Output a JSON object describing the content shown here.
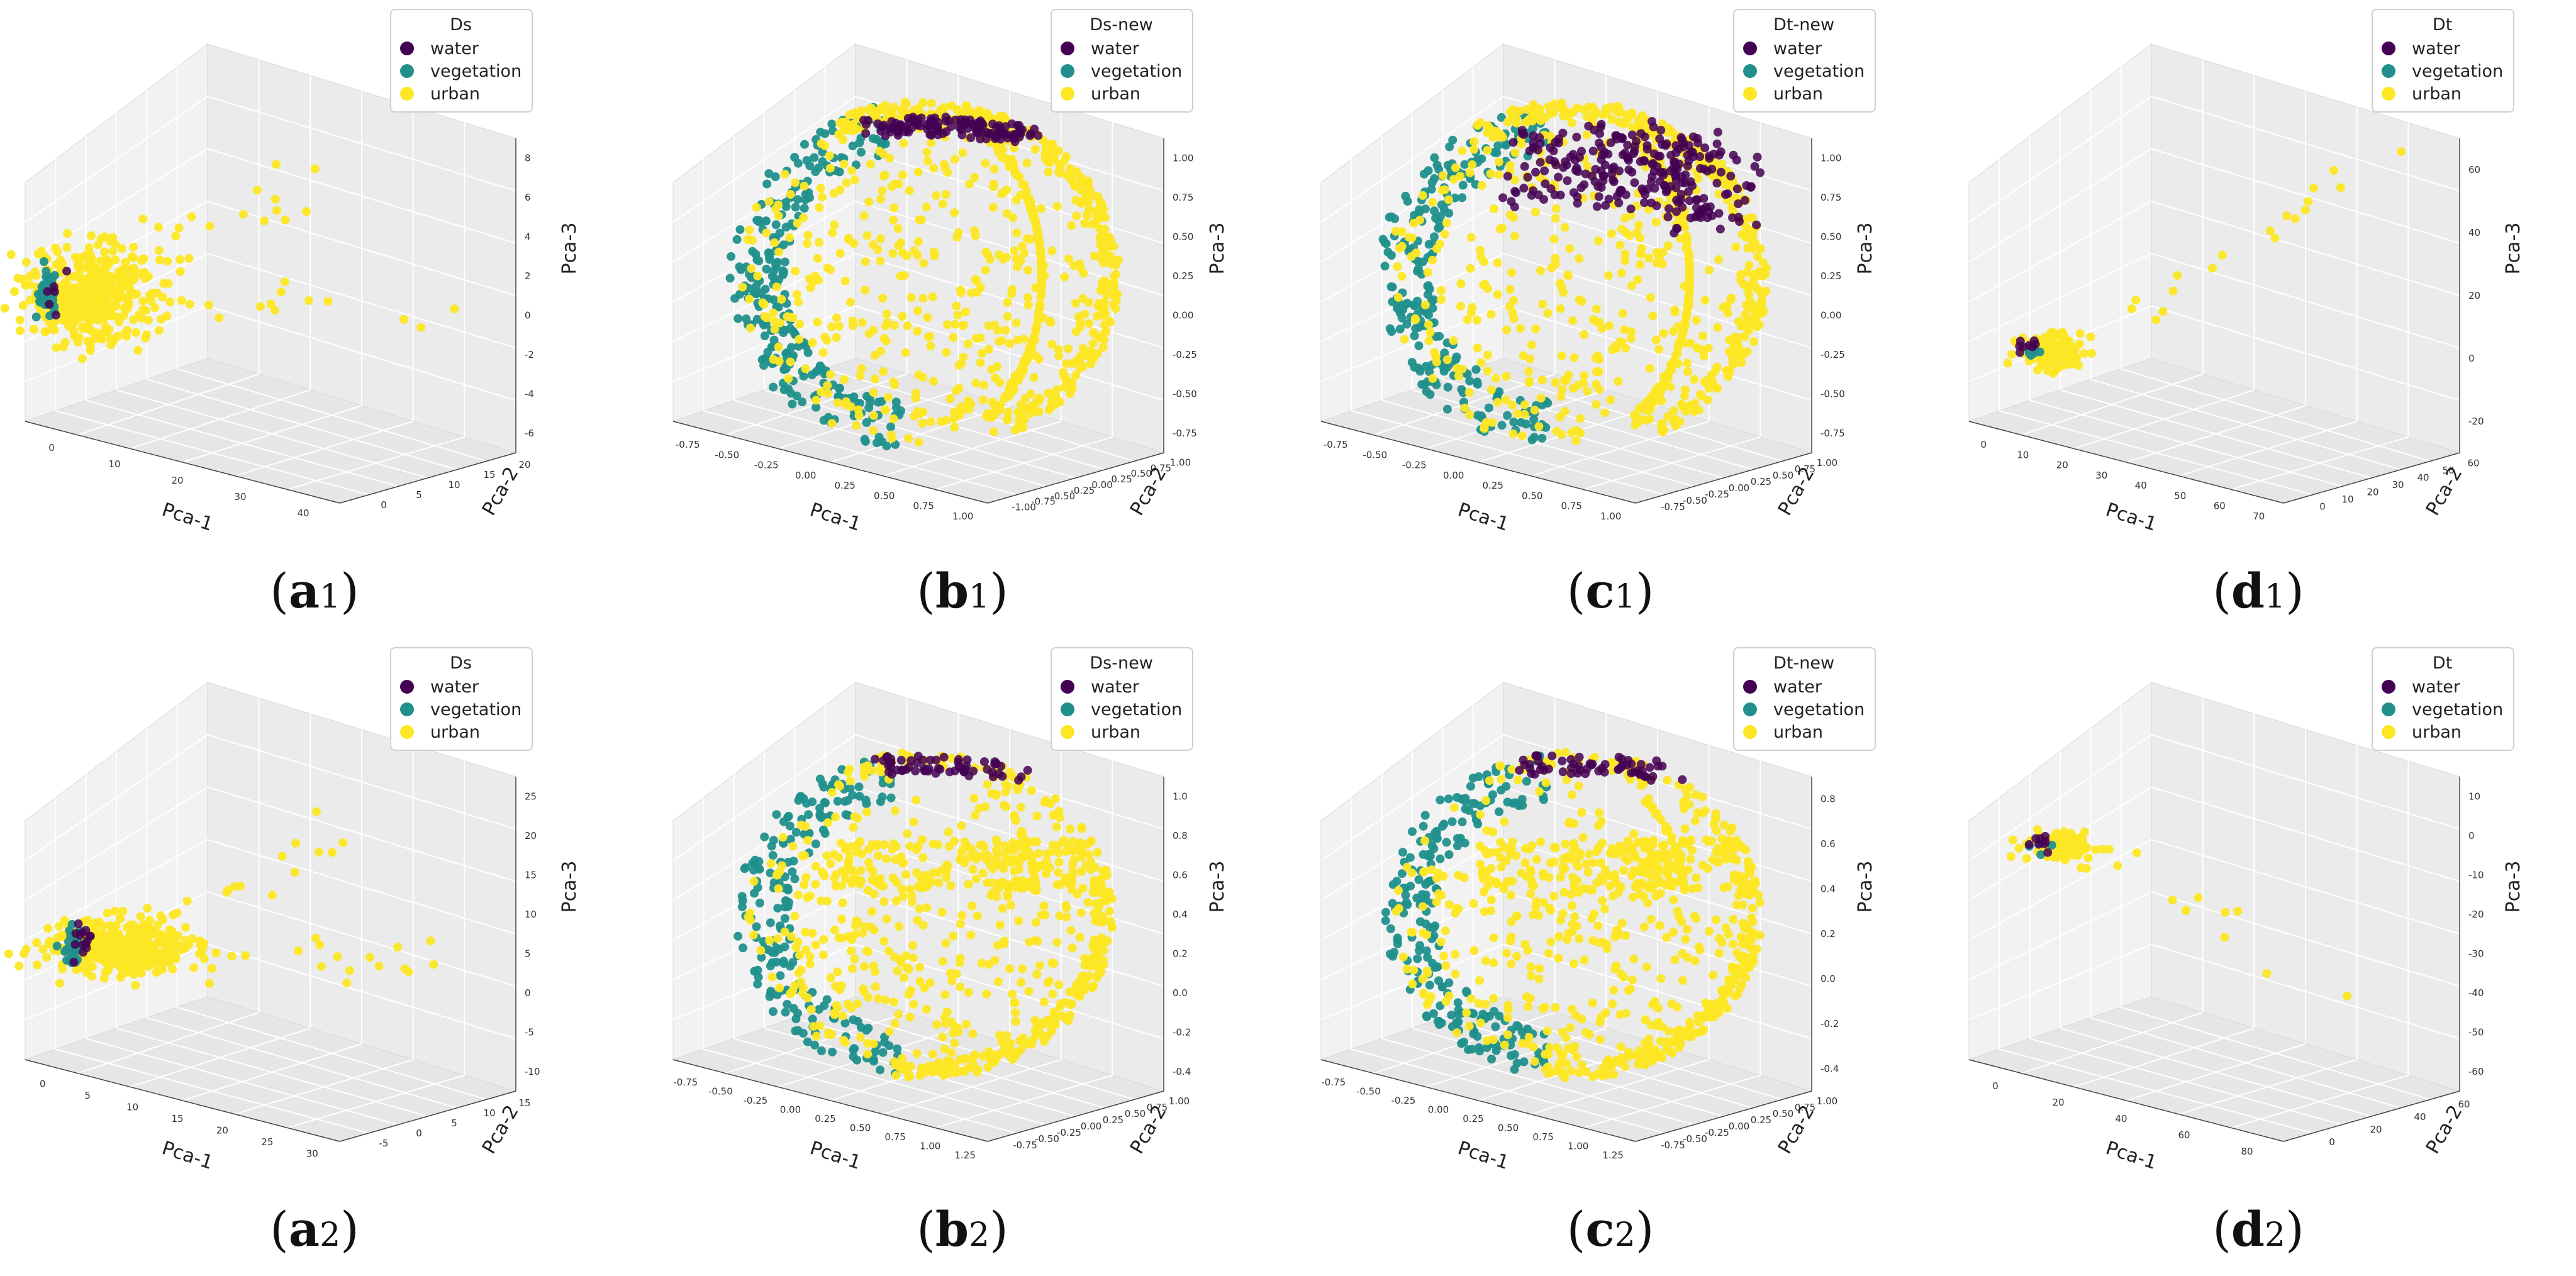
{
  "figure": {
    "axis_labels": {
      "x": "Pca-1",
      "y": "Pca-2",
      "z": "Pca-3"
    }
  },
  "legend_classes": [
    {
      "name": "water",
      "color": "#440154"
    },
    {
      "name": "vegetation",
      "color": "#21908c"
    },
    {
      "name": "urban",
      "color": "#fde725"
    }
  ],
  "chart_data": [
    {
      "type": "scatter",
      "id": "a1",
      "caption_letter": "a",
      "caption_sub": "1",
      "title": "Ds",
      "shape": "blob",
      "zlabel": "Pca-3",
      "xlabel": "Pca-1",
      "ylabel": "Pca-2",
      "xticks": [
        "0",
        "10",
        "20",
        "30",
        "40"
      ],
      "yticks": [
        "0",
        "5",
        "10",
        "15",
        "20"
      ],
      "zticks": [
        "8",
        "6",
        "4",
        "2",
        "0",
        "-2",
        "-4",
        "-6"
      ],
      "series": [
        {
          "name": "water",
          "count": 6
        },
        {
          "name": "vegetation",
          "count": 30
        },
        {
          "name": "urban",
          "count": 420
        }
      ]
    },
    {
      "type": "scatter",
      "id": "b1",
      "caption_letter": "b",
      "caption_sub": "1",
      "title": "Ds-new",
      "shape": "sphere",
      "zlabel": "Pca-3",
      "xlabel": "Pca-1",
      "ylabel": "Pca-2",
      "xticks": [
        "-0.75",
        "-0.50",
        "-0.25",
        "0.00",
        "0.25",
        "0.50",
        "0.75",
        "1.00"
      ],
      "yticks": [
        "-1.00",
        "-0.75",
        "-0.50",
        "-0.25",
        "0.00",
        "0.25",
        "0.50",
        "0.75",
        "1.00"
      ],
      "zticks": [
        "1.00",
        "0.75",
        "0.50",
        "0.25",
        "0.00",
        "-0.25",
        "-0.50",
        "-0.75"
      ],
      "series": [
        {
          "name": "water",
          "count": 120
        },
        {
          "name": "vegetation",
          "count": 260
        },
        {
          "name": "urban",
          "count": 900
        }
      ]
    },
    {
      "type": "scatter",
      "id": "c1",
      "caption_letter": "c",
      "caption_sub": "1",
      "title": "Dt-new",
      "shape": "sphere",
      "zlabel": "Pca-3",
      "xlabel": "Pca-1",
      "ylabel": "Pca-2",
      "xticks": [
        "-0.75",
        "-0.50",
        "-0.25",
        "0.00",
        "0.25",
        "0.50",
        "0.75",
        "1.00"
      ],
      "yticks": [
        "-0.75",
        "-0.50",
        "-0.25",
        "0.00",
        "0.25",
        "0.50",
        "0.75",
        "1.00"
      ],
      "zticks": [
        "1.00",
        "0.75",
        "0.50",
        "0.25",
        "0.00",
        "-0.25",
        "-0.50",
        "-0.75"
      ],
      "series": [
        {
          "name": "water",
          "count": 260
        },
        {
          "name": "vegetation",
          "count": 240
        },
        {
          "name": "urban",
          "count": 800
        }
      ]
    },
    {
      "type": "scatter",
      "id": "d1",
      "caption_letter": "d",
      "caption_sub": "1",
      "title": "Dt",
      "shape": "blob",
      "zlabel": "Pca-3",
      "xlabel": "Pca-1",
      "ylabel": "Pca-2",
      "xticks": [
        "0",
        "10",
        "20",
        "30",
        "40",
        "50",
        "60",
        "70"
      ],
      "yticks": [
        "0",
        "10",
        "20",
        "30",
        "40",
        "50",
        "60"
      ],
      "zticks": [
        "60",
        "40",
        "20",
        "0",
        "-20"
      ],
      "series": [
        {
          "name": "water",
          "count": 8
        },
        {
          "name": "vegetation",
          "count": 6
        },
        {
          "name": "urban",
          "count": 160
        }
      ]
    },
    {
      "type": "scatter",
      "id": "a2",
      "caption_letter": "a",
      "caption_sub": "2",
      "title": "Ds",
      "shape": "blob",
      "zlabel": "Pca-3",
      "xlabel": "Pca-1",
      "ylabel": "Pca-2",
      "xticks": [
        "0",
        "5",
        "10",
        "15",
        "20",
        "25",
        "30"
      ],
      "yticks": [
        "-5",
        "0",
        "5",
        "10",
        "15"
      ],
      "zticks": [
        "25",
        "20",
        "15",
        "10",
        "5",
        "0",
        "-5",
        "-10"
      ],
      "series": [
        {
          "name": "water",
          "count": 14
        },
        {
          "name": "vegetation",
          "count": 30
        },
        {
          "name": "urban",
          "count": 420
        }
      ]
    },
    {
      "type": "scatter",
      "id": "b2",
      "caption_letter": "b",
      "caption_sub": "2",
      "title": "Ds-new",
      "shape": "bowl",
      "zlabel": "Pca-3",
      "xlabel": "Pca-1",
      "ylabel": "Pca-2",
      "xticks": [
        "-0.75",
        "-0.50",
        "-0.25",
        "0.00",
        "0.25",
        "0.50",
        "0.75",
        "1.00",
        "1.25"
      ],
      "yticks": [
        "-0.75",
        "-0.50",
        "-0.25",
        "0.00",
        "0.25",
        "0.50",
        "0.75",
        "1.00"
      ],
      "zticks": [
        "1.0",
        "0.8",
        "0.6",
        "0.4",
        "0.2",
        "0.0",
        "-0.2",
        "-0.4"
      ],
      "series": [
        {
          "name": "water",
          "count": 60
        },
        {
          "name": "vegetation",
          "count": 200
        },
        {
          "name": "urban",
          "count": 820
        }
      ]
    },
    {
      "type": "scatter",
      "id": "c2",
      "caption_letter": "c",
      "caption_sub": "2",
      "title": "Dt-new",
      "shape": "bowl",
      "zlabel": "Pca-3",
      "xlabel": "Pca-1",
      "ylabel": "Pca-2",
      "xticks": [
        "-0.75",
        "-0.50",
        "-0.25",
        "0.00",
        "0.25",
        "0.50",
        "0.75",
        "1.00",
        "1.25"
      ],
      "yticks": [
        "-0.75",
        "-0.50",
        "-0.25",
        "0.00",
        "0.25",
        "0.50",
        "0.75",
        "1.00"
      ],
      "zticks": [
        "0.8",
        "0.6",
        "0.4",
        "0.2",
        "0.0",
        "-0.2",
        "-0.4"
      ],
      "series": [
        {
          "name": "water",
          "count": 60
        },
        {
          "name": "vegetation",
          "count": 220
        },
        {
          "name": "urban",
          "count": 820
        }
      ]
    },
    {
      "type": "scatter",
      "id": "d2",
      "caption_letter": "d",
      "caption_sub": "2",
      "title": "Dt",
      "shape": "blob",
      "zlabel": "Pca-3",
      "xlabel": "Pca-1",
      "ylabel": "Pca-2",
      "xticks": [
        "0",
        "20",
        "40",
        "60",
        "80"
      ],
      "yticks": [
        "0",
        "20",
        "40",
        "60"
      ],
      "zticks": [
        "10",
        "0",
        "-10",
        "-20",
        "-30",
        "-40",
        "-50",
        "-60"
      ],
      "series": [
        {
          "name": "water",
          "count": 8
        },
        {
          "name": "vegetation",
          "count": 4
        },
        {
          "name": "urban",
          "count": 110
        }
      ]
    }
  ]
}
